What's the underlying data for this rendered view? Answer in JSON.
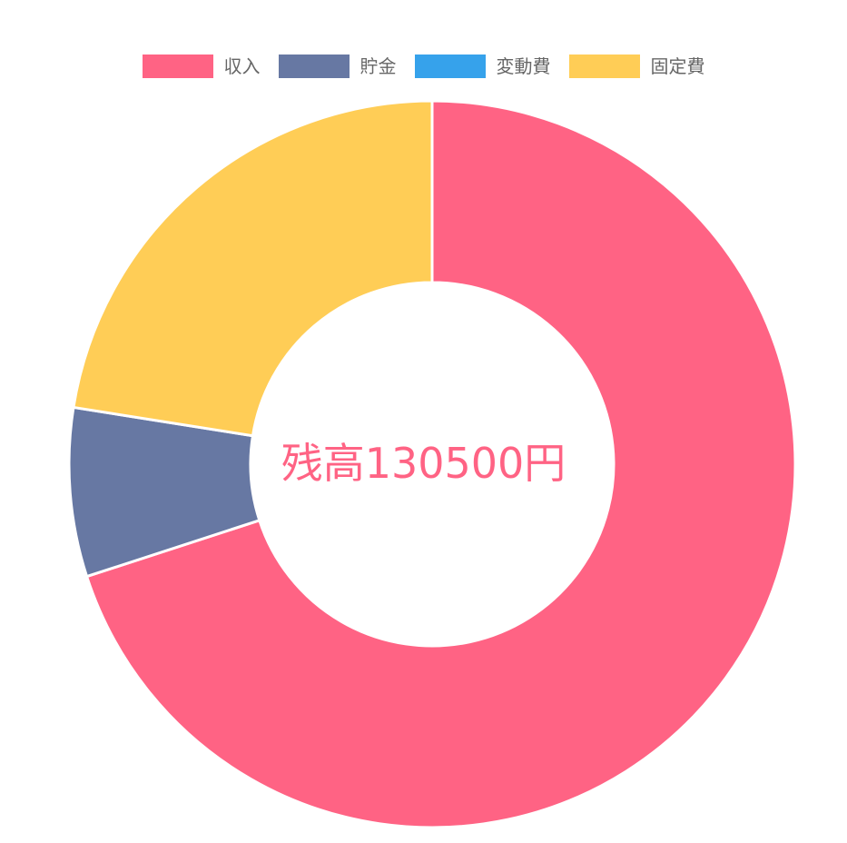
{
  "chart_data": {
    "type": "pie",
    "variant": "doughnut",
    "categories": [
      "収入",
      "貯金",
      "変動費",
      "固定費"
    ],
    "values": [
      70,
      7.5,
      0,
      22.5
    ],
    "colors": [
      "#ff6384",
      "#6778a3",
      "#36a2eb",
      "#ffcd56"
    ],
    "legend_position": "top",
    "center_text": "残高130500円"
  }
}
